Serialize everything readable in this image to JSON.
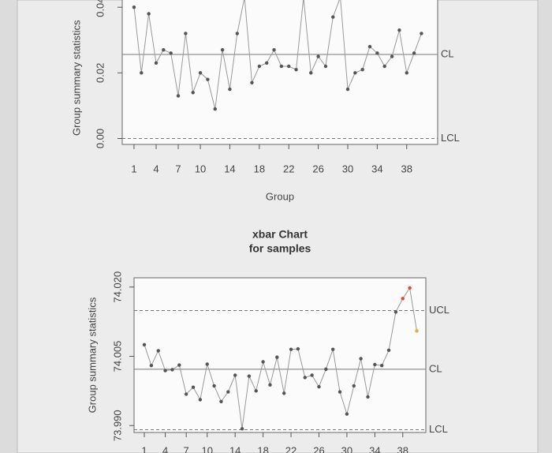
{
  "chart_data": [
    {
      "type": "line",
      "x": [
        1,
        2,
        3,
        4,
        5,
        6,
        7,
        8,
        9,
        10,
        11,
        12,
        13,
        14,
        15,
        16,
        17,
        18,
        19,
        20,
        21,
        22,
        23,
        24,
        25,
        26,
        27,
        28,
        29,
        30,
        31,
        32,
        33,
        34,
        35,
        36,
        37,
        38,
        39,
        40
      ],
      "series": [
        {
          "color": "#555555",
          "values": [
            0.04,
            0.02,
            0.038,
            0.023,
            0.027,
            0.026,
            0.013,
            0.032,
            0.014,
            0.02,
            0.018,
            0.009,
            0.027,
            0.015,
            0.032,
            0.043,
            0.017,
            0.022,
            0.023,
            0.027,
            0.022,
            0.022,
            0.021,
            0.043,
            0.02,
            0.025,
            0.022,
            0.037,
            0.043,
            0.015,
            0.02,
            0.021,
            0.028,
            0.026,
            0.022,
            0.025,
            0.033,
            0.02,
            0.026,
            0.032
          ]
        }
      ],
      "xlim": [
        -0.6,
        42.2
      ],
      "ylim": [
        -0.0018,
        0.0446
      ],
      "xticks": [
        1,
        4,
        7,
        10,
        14,
        18,
        22,
        26,
        30,
        34,
        38
      ],
      "yticks": [
        {
          "value": 0,
          "label": "0.00"
        },
        {
          "value": 0.02,
          "label": "0.02"
        },
        {
          "value": 0.04,
          "label": "0.04"
        }
      ],
      "x_label": "Group",
      "y_label": "Group summary statistics",
      "limits": [
        {
          "value": 0.0256,
          "label": "CL",
          "style": "solid"
        },
        {
          "value": 0,
          "label": "LCL",
          "style": "dashed"
        }
      ]
    },
    {
      "type": "line",
      "title": "xbar Chart",
      "subtitle": "for samples",
      "x": [
        1,
        2,
        3,
        4,
        5,
        6,
        7,
        8,
        9,
        10,
        11,
        12,
        13,
        14,
        15,
        16,
        17,
        18,
        19,
        20,
        21,
        22,
        23,
        24,
        25,
        26,
        27,
        28,
        29,
        30,
        31,
        32,
        33,
        34,
        35,
        36,
        37,
        38,
        39,
        40
      ],
      "series": [
        {
          "color": "#555555",
          "values": [
            74.0075,
            74.003,
            74.0062,
            74.0019,
            74.0021,
            74.0031,
            73.9968,
            73.9983,
            73.9956,
            74.0033,
            73.9986,
            73.9952,
            73.9973,
            74.0009,
            73.9893,
            74.0007,
            73.9975,
            74.0038,
            73.9988,
            74.0048,
            73.997,
            74.0065,
            74.0066,
            74.0004,
            74.0009,
            73.9984,
            74.0022,
            74.0065,
            73.9973,
            73.9925,
            73.9986,
            74.0045,
            73.9962,
            74.0032,
            74.003,
            74.0063,
            74.0146,
            74.0175,
            74.0198,
            74.0105
          ]
        }
      ],
      "point_colors": [
        "#555555",
        "#555555",
        "#555555",
        "#555555",
        "#555555",
        "#555555",
        "#555555",
        "#555555",
        "#555555",
        "#555555",
        "#555555",
        "#555555",
        "#555555",
        "#555555",
        "#555555",
        "#555555",
        "#555555",
        "#555555",
        "#555555",
        "#555555",
        "#555555",
        "#555555",
        "#555555",
        "#555555",
        "#555555",
        "#555555",
        "#555555",
        "#555555",
        "#555555",
        "#555555",
        "#555555",
        "#555555",
        "#555555",
        "#555555",
        "#555555",
        "#555555",
        "#555555",
        "#e8452c",
        "#e8452c",
        "#f0a830"
      ],
      "xlim": [
        -0.47,
        41.3
      ],
      "ylim": [
        73.9885,
        74.022
      ],
      "xticks": [
        1,
        4,
        7,
        10,
        14,
        18,
        22,
        26,
        30,
        34,
        38
      ],
      "yticks": [
        {
          "value": 73.99,
          "label": "73.990"
        },
        {
          "value": 74.005,
          "label": "74.005"
        },
        {
          "value": 74.02,
          "label": "74.020"
        }
      ],
      "y_label": "Group summary statistics",
      "limits": [
        {
          "value": 74.0149,
          "label": "UCL",
          "style": "dashed"
        },
        {
          "value": 74.0022,
          "label": "CL",
          "style": "solid"
        },
        {
          "value": 73.9891,
          "label": "LCL",
          "style": "dashed"
        }
      ]
    }
  ]
}
